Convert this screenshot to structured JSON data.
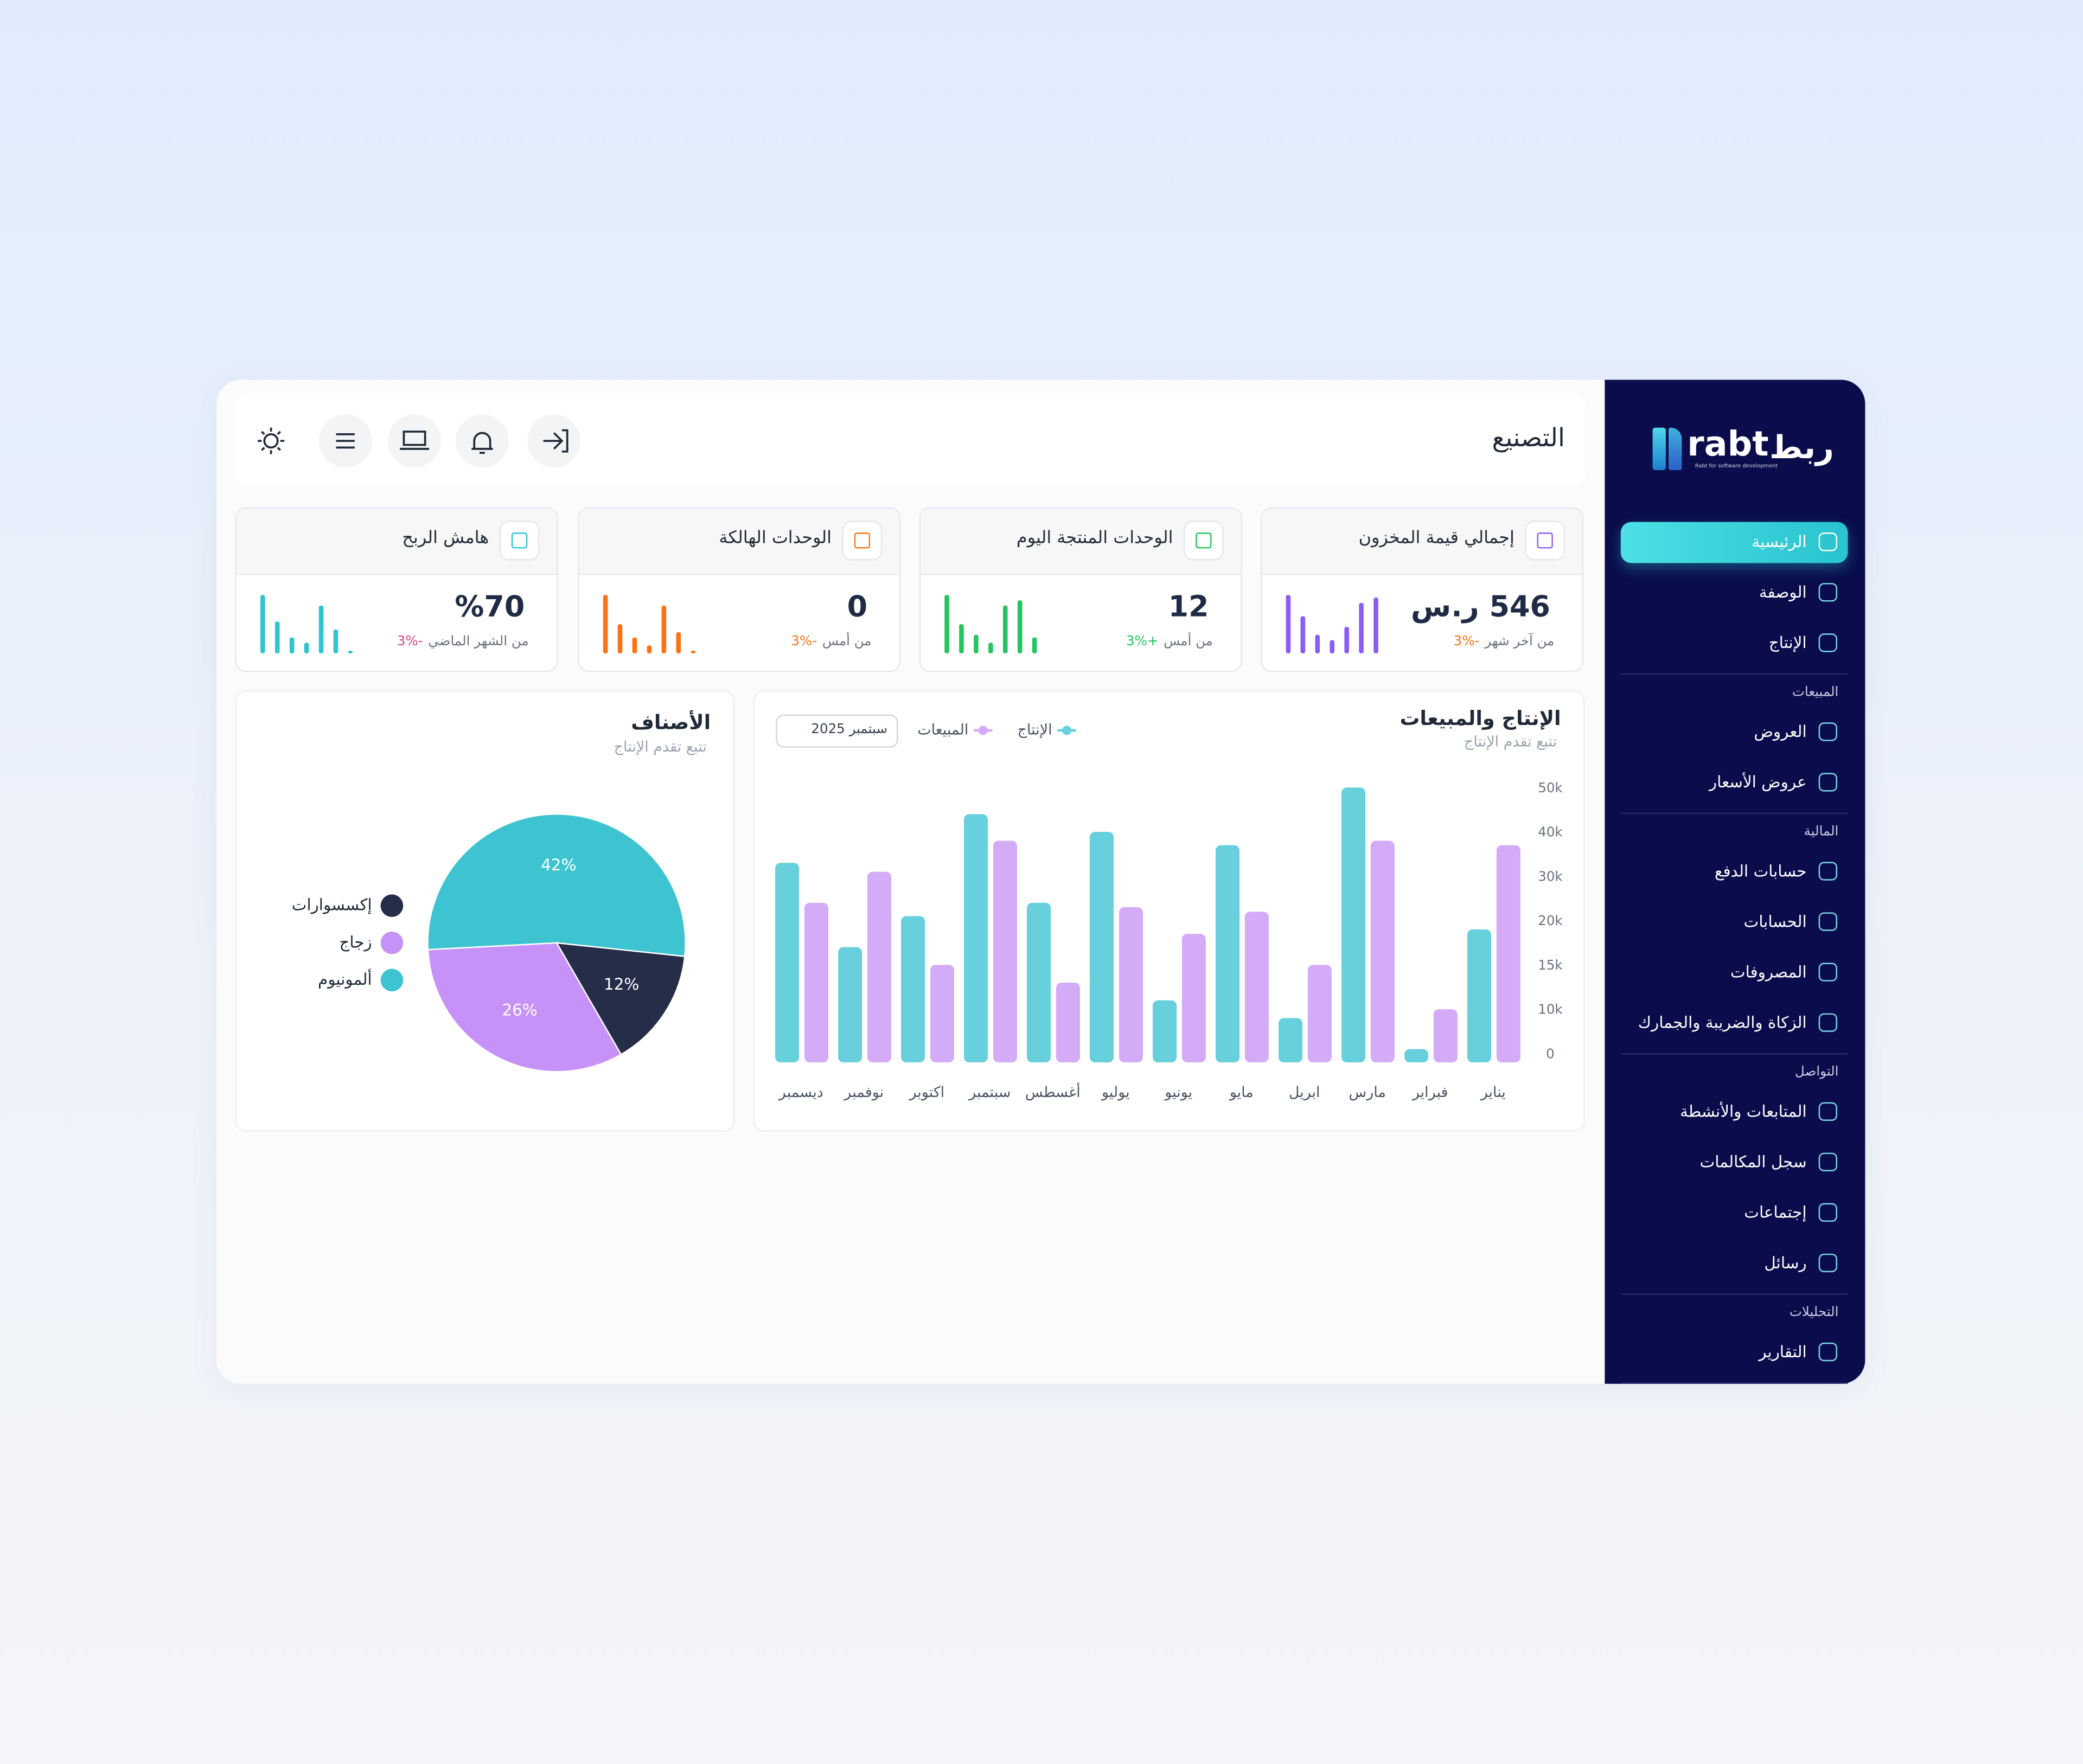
{
  "sidebar": {
    "logo_latin": "rabt",
    "logo_arabic": "ربط",
    "logo_tagline": "Rabt for software development",
    "items": [
      "الرئيسية",
      "الوصفة",
      "الإنتاج"
    ],
    "active": "الرئيسية",
    "sections": [
      {
        "title": "المبيعات",
        "items": [
          "العروض",
          "عروض الأسعار"
        ]
      },
      {
        "title": "المالية",
        "items": [
          "حسابات الدفع",
          "الحسابات",
          "المصروفات",
          "الزكاة والضريبة والجمارك"
        ]
      },
      {
        "title": "التواصل",
        "items": [
          "المتابعات والأنشطة",
          "سجل المكالمات",
          "إجتماعات",
          "رسائل"
        ]
      },
      {
        "title": "التحليلات",
        "items": [
          "التقارير"
        ]
      }
    ]
  },
  "header": {
    "title": "التصنيع"
  },
  "kpis": [
    {
      "title": "إجمالي قيمة المخزون",
      "value": "546 ر.س",
      "change": "-3%",
      "change_color": "#f97316",
      "period": "من آخر شهر",
      "color": "#8b5cf6",
      "spark": [
        44,
        28,
        14,
        10,
        20,
        38,
        42
      ]
    },
    {
      "title": "الوحدات المنتجة اليوم",
      "value": "12",
      "change": "+3%",
      "change_color": "#22c55e",
      "period": "من أمس",
      "color": "#22c55e",
      "spark": [
        44,
        22,
        14,
        8,
        36,
        40,
        12
      ]
    },
    {
      "title": "الوحدات الهالكة",
      "value": "0",
      "change": "-3%",
      "change_color": "#f97316",
      "period": "من أمس",
      "color": "#f97316",
      "spark": [
        44,
        22,
        12,
        6,
        36,
        16,
        2
      ]
    },
    {
      "title": "هامش الربح",
      "value": "%70",
      "change": "-3%",
      "change_color": "#e0457b",
      "period": "من الشهر الماضي",
      "color": "#2ec4d0",
      "spark": [
        44,
        24,
        12,
        8,
        36,
        18,
        2
      ]
    }
  ],
  "chart_data": [
    {
      "type": "bar",
      "title": "الإنتاج والمبيعات",
      "subtitle": "تتبع تقدم الإنتاج",
      "dropdown": "سبتمبر 2025",
      "categories": [
        "يناير",
        "فبراير",
        "مارس",
        "ابريل",
        "مايو",
        "يونيو",
        "يوليو",
        "أغسطس",
        "سبتمبر",
        "اكتوبر",
        "نوفمبر",
        "ديسمبر"
      ],
      "series": [
        {
          "name": "الإنتاج",
          "color": "#67d0dc",
          "values": [
            20000,
            3000,
            52000,
            10000,
            39000,
            12000,
            42000,
            26000,
            46000,
            23000,
            18000,
            35000
          ]
        },
        {
          "name": "المبيعات",
          "color": "#d4abf7",
          "values": [
            39000,
            11000,
            40000,
            16000,
            24000,
            19500,
            25000,
            14000,
            40000,
            16000,
            33000,
            26000
          ]
        }
      ],
      "ylim": [
        0,
        55000
      ],
      "yticks": [
        0,
        {
          "value": 10000,
          "label": "10k"
        },
        {
          "value": 15000,
          "label": "15k"
        },
        {
          "value": 20000,
          "label": "20k"
        },
        {
          "value": 30000,
          "label": "30k"
        },
        {
          "value": 40000,
          "label": "40k"
        },
        {
          "value": 50000,
          "label": "50k"
        }
      ]
    },
    {
      "type": "pie",
      "title": "الأصناف",
      "subtitle": "تتبع تقدم الإنتاج",
      "categories": [
        "إكسسوارات",
        "زجاج",
        "ألمونيوم"
      ],
      "values": [
        12,
        26,
        42
      ],
      "value_labels": [
        "12%",
        "26%",
        "42%"
      ],
      "colors": [
        "#252d48",
        "#c792f7",
        "#3ec4d0"
      ]
    }
  ]
}
